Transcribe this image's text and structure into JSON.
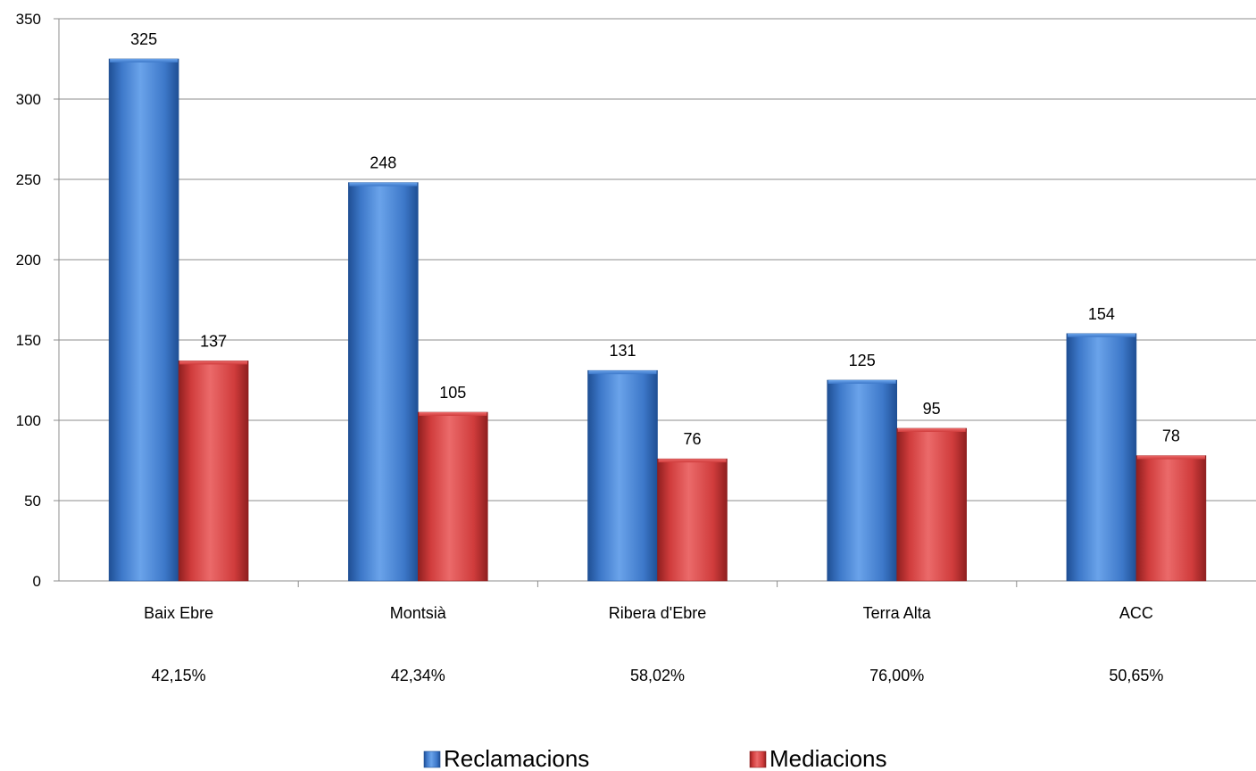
{
  "chart_data": {
    "type": "bar",
    "title": "",
    "xlabel": "",
    "ylabel": "",
    "ylim": [
      0,
      350
    ],
    "yticks": [
      0,
      50,
      100,
      150,
      200,
      250,
      300,
      350
    ],
    "grid": true,
    "categories": [
      "Baix Ebre",
      "Montsià",
      "Ribera d'Ebre",
      "Terra Alta",
      "ACC"
    ],
    "percentages": [
      "42,15%",
      "42,34%",
      "58,02%",
      "76,00%",
      "50,65%"
    ],
    "series": [
      {
        "name": "Reclamacions",
        "values": [
          325,
          248,
          131,
          125,
          154
        ],
        "color": "#3d78c9",
        "color_light": "#6aa3ea",
        "color_dark": "#1f4f94"
      },
      {
        "name": "Mediacions",
        "values": [
          137,
          105,
          76,
          95,
          78
        ],
        "color": "#d03c3c",
        "color_light": "#eb6a6a",
        "color_dark": "#8f1f1f"
      }
    ],
    "legend_position": "bottom"
  }
}
